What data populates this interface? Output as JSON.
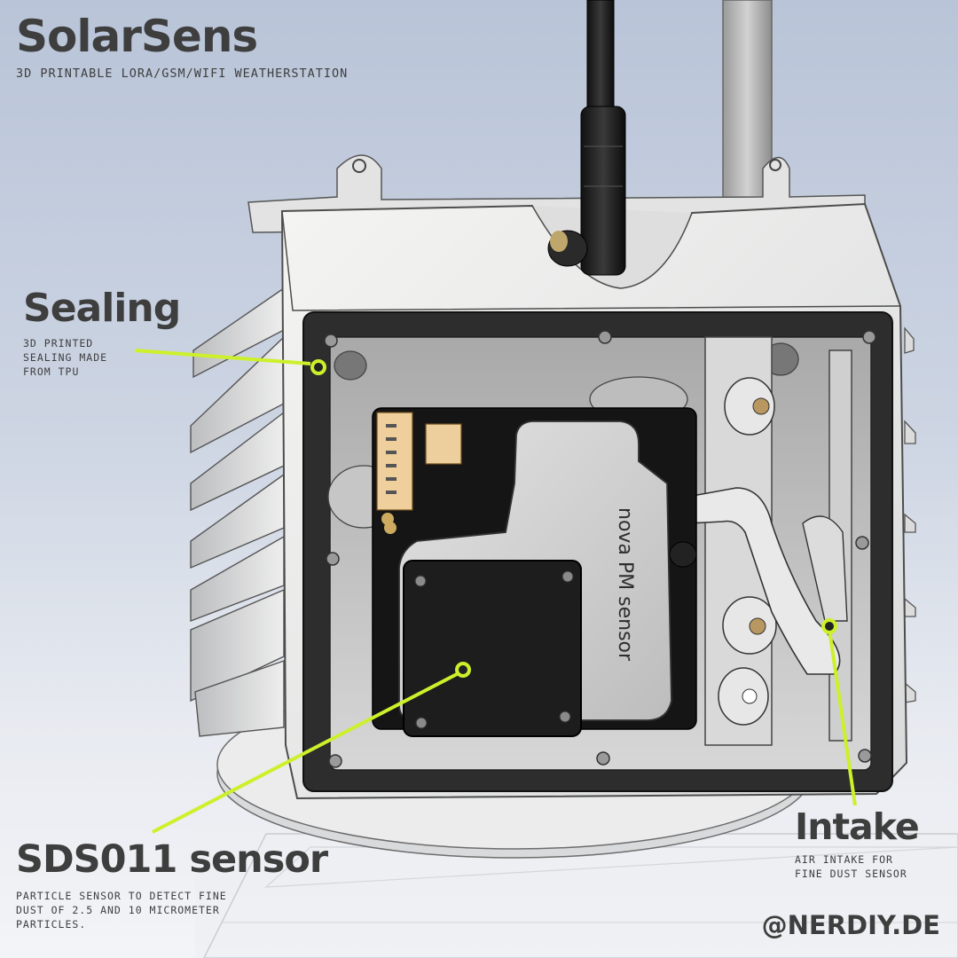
{
  "header": {
    "title": "SolarSens",
    "subtitle": "3D PRINTABLE LORA/GSM/WIFI WEATHERSTATION"
  },
  "callouts": {
    "sealing": {
      "heading": "Sealing",
      "lines": [
        "3D PRINTED",
        "SEALING MADE",
        "FROM TPU"
      ]
    },
    "sensor": {
      "heading": "SDS011 sensor",
      "lines": [
        "PARTICLE SENSOR TO DETECT FINE",
        "DUST OF 2.5 AND 10 MICROMETER",
        "PARTICLES."
      ]
    },
    "intake": {
      "heading": "Intake",
      "lines": [
        "AIR INTAKE FOR",
        "FINE DUST SENSOR"
      ]
    }
  },
  "device": {
    "sensor_label": "nova PM sensor"
  },
  "footer": {
    "handle": "@NERDIY.DE"
  },
  "colors": {
    "accent": "#ccf02a",
    "text": "#3e3e3e",
    "background_top": "#b9c4d8",
    "background_bottom": "#f3f4f7"
  }
}
